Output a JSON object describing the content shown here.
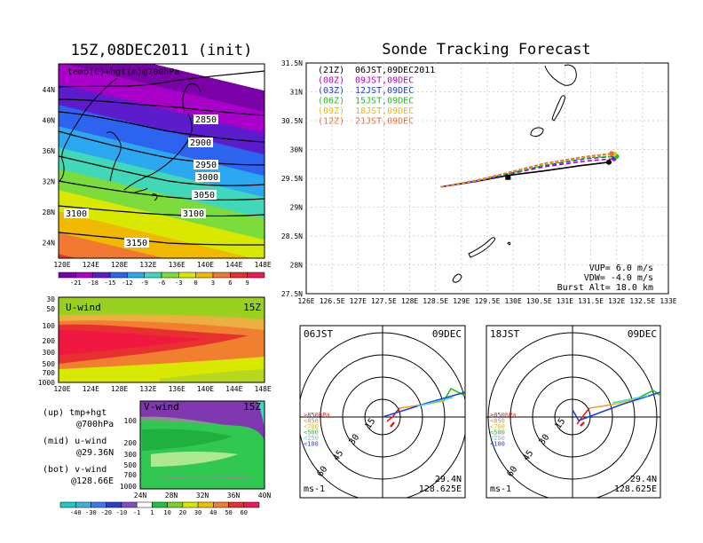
{
  "colors": {
    "accent": "#000000",
    "temp_bands": [
      "#7a00a8",
      "#a800c8",
      "#5c1ccc",
      "#2c64f0",
      "#2ca8f0",
      "#40d8b8",
      "#7cdc3c",
      "#d8e800",
      "#f0b800",
      "#f07830",
      "#e83030",
      "#f01854"
    ],
    "track": [
      "#000000",
      "#c000c0",
      "#2040e0",
      "#20c020",
      "#e8c000",
      "#f07030"
    ]
  },
  "left": {
    "title": "15Z,08DEC2011 (init)",
    "map_label": "temp(C)+hgt(m)@700hPa",
    "lat_ticks": [
      "44N",
      "40N",
      "36N",
      "32N",
      "28N",
      "24N"
    ],
    "lon_ticks": [
      "120E",
      "124E",
      "128E",
      "132E",
      "136E",
      "140E",
      "144E",
      "148E"
    ],
    "contour_labels": [
      "2850",
      "2900",
      "2950",
      "3000",
      "3050",
      "3100",
      "3100",
      "3150"
    ],
    "temp_colorbar": [
      "-21",
      "-18",
      "-15",
      "-12",
      "-9",
      "-6",
      "-3",
      "0",
      "3",
      "6",
      "9"
    ],
    "uwind": {
      "label": "U-wind",
      "time": "15Z",
      "p_ticks": [
        "30",
        "50",
        "100",
        "200",
        "300",
        "500",
        "700",
        "1000"
      ],
      "lon_ticks": [
        "120E",
        "124E",
        "128E",
        "132E",
        "136E",
        "140E",
        "144E",
        "148E"
      ]
    },
    "vwind": {
      "label": "V-wind",
      "time": "15Z",
      "p_ticks": [
        "100",
        "200",
        "300",
        "500",
        "700",
        "1000"
      ],
      "lat_ticks": [
        "24N",
        "28N",
        "32N",
        "36N",
        "40N"
      ]
    },
    "legend": {
      "l1": "(up) tmp+hgt",
      "l2": "@700hPa",
      "l3": "(mid) u-wind",
      "l4": "@29.36N",
      "l5": "(bot) v-wind",
      "l6": "@128.66E"
    },
    "wind_colorbar": [
      "-40",
      "-30",
      "-20",
      "-10",
      "-1",
      "1",
      "10",
      "20",
      "30",
      "40",
      "50",
      "60"
    ]
  },
  "right": {
    "title": "Sonde Tracking Forecast",
    "runs": [
      {
        "z": "(21Z)",
        "t": "06JST,09DEC2011",
        "color": "#000000"
      },
      {
        "z": "(00Z)",
        "t": "09JST,09DEC",
        "color": "#c000c0"
      },
      {
        "z": "(03Z)",
        "t": "12JST,09DEC",
        "color": "#2040e0"
      },
      {
        "z": "(06Z)",
        "t": "15JST,09DEC",
        "color": "#20c020"
      },
      {
        "z": "(09Z)",
        "t": "18JST,09DEC",
        "color": "#e8c000"
      },
      {
        "z": "(12Z)",
        "t": "21JST,09DEC",
        "color": "#f07030"
      }
    ],
    "lat_ticks": [
      "31.5N",
      "31N",
      "30.5N",
      "30N",
      "29.5N",
      "29N",
      "28.5N",
      "28N",
      "27.5N"
    ],
    "lon_ticks": [
      "126E",
      "126.5E",
      "127E",
      "127.5E",
      "128E",
      "128.5E",
      "129E",
      "129.5E",
      "130E",
      "130.5E",
      "131E",
      "131.5E",
      "132E",
      "132.5E",
      "133E"
    ],
    "params": {
      "vup": "VUP=  6.0  m/s",
      "vdw": "VDW= -4.0  m/s",
      "burst": "Burst Alt= 18.0  km"
    },
    "hodo_left": {
      "time": "06JST",
      "date": "09DEC",
      "lat": "29.4N",
      "lon": "128.625E",
      "unit": "ms-1"
    },
    "hodo_right": {
      "time": "18JST",
      "date": "09DEC",
      "lat": "29.4N",
      "lon": "128.625E",
      "unit": "ms-1"
    },
    "ring_labels": [
      "15",
      "30",
      "45",
      "60"
    ],
    "levels": [
      "≥850hPa",
      "<850",
      "<700",
      "<500",
      "<250",
      "<100"
    ]
  },
  "chart_data": [
    {
      "type": "heatmap",
      "title": "15Z,08DEC2011 (init)",
      "label": "temp(C)+hgt(m)@700hPa",
      "x_ticks": [
        "120E",
        "124E",
        "128E",
        "132E",
        "136E",
        "140E",
        "144E",
        "148E"
      ],
      "y_ticks": [
        "24N",
        "28N",
        "32N",
        "36N",
        "40N",
        "44N"
      ],
      "colorbar": [
        -21,
        -18,
        -15,
        -12,
        -9,
        -6,
        -3,
        0,
        3,
        6,
        9
      ],
      "contours": [
        2850,
        2900,
        2950,
        3000,
        3050,
        3100,
        3150
      ]
    },
    {
      "type": "line",
      "title": "Sonde Tracking Forecast",
      "xlim": [
        126,
        133
      ],
      "ylim": [
        27.5,
        31.5
      ],
      "series": [
        {
          "name": "(21Z) 06JST,09DEC2011",
          "x": [
            128.6,
            129.3,
            129.9,
            130.6,
            131.3,
            131.85
          ],
          "y": [
            29.35,
            29.45,
            29.55,
            29.63,
            29.72,
            29.78
          ]
        },
        {
          "name": "(00Z) 09JST,09DEC",
          "x": [
            128.6,
            129.3,
            129.9,
            130.6,
            131.4,
            131.95
          ],
          "y": [
            29.35,
            29.45,
            29.57,
            29.7,
            29.8,
            29.84
          ]
        },
        {
          "name": "(03Z) 12JST,09DEC",
          "x": [
            128.6,
            129.3,
            129.9,
            130.6,
            131.4,
            131.95
          ],
          "y": [
            29.35,
            29.46,
            29.58,
            29.72,
            29.84,
            29.88
          ]
        },
        {
          "name": "(06Z) 15JST,09DEC",
          "x": [
            128.6,
            129.3,
            129.9,
            130.6,
            131.4,
            132.0
          ],
          "y": [
            29.35,
            29.46,
            29.58,
            29.73,
            29.86,
            29.88
          ]
        },
        {
          "name": "(09Z) 18JST,09DEC",
          "x": [
            128.6,
            129.3,
            129.9,
            130.6,
            131.4,
            131.95
          ],
          "y": [
            29.35,
            29.46,
            29.6,
            29.75,
            29.87,
            29.92
          ]
        },
        {
          "name": "(12Z) 21JST,09DEC",
          "x": [
            128.6,
            129.3,
            129.9,
            130.6,
            131.4,
            131.9
          ],
          "y": [
            29.35,
            29.47,
            29.6,
            29.76,
            29.88,
            29.93
          ]
        }
      ]
    }
  ]
}
